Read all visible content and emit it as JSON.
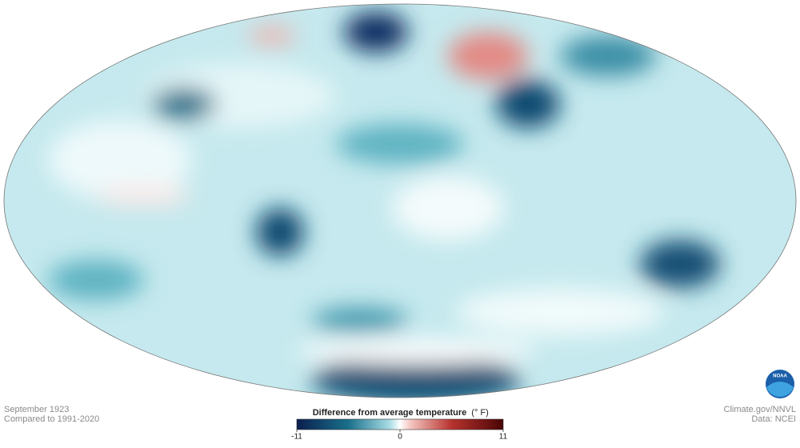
{
  "title": "September 1923",
  "subtitle": "Compared to 1991-2020",
  "credit": "Climate.gov/NNVL",
  "source": "Data: NCEI",
  "logo": "NOAA",
  "colorbar": {
    "title": "Difference from average temperature",
    "unit": "(° F)",
    "lim": [
      -11,
      11
    ],
    "ticks": [
      -11,
      0,
      11
    ]
  }
}
